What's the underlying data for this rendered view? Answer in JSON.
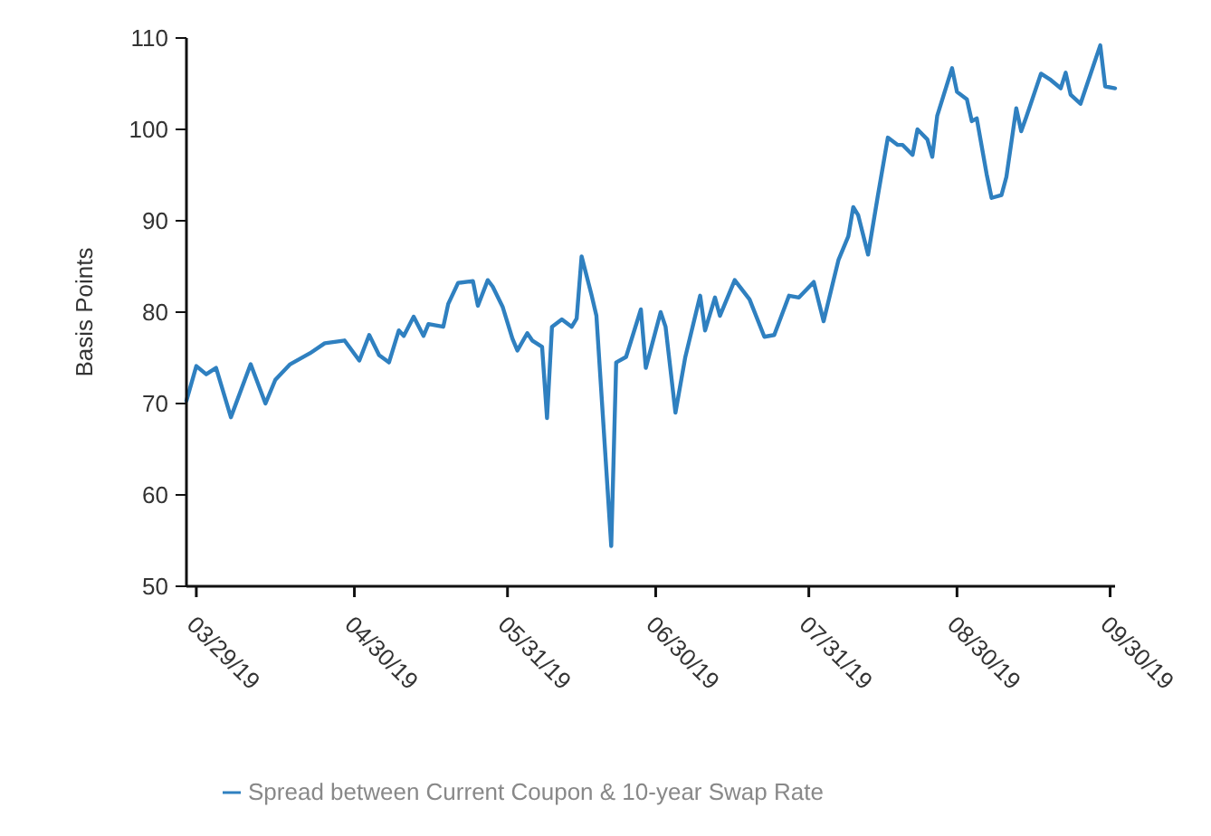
{
  "chart_data": {
    "type": "line",
    "ylabel": "Basis Points",
    "x": [
      "2019-03-27",
      "2019-03-29",
      "2019-03-31",
      "2019-04-02",
      "2019-04-05",
      "2019-04-09",
      "2019-04-12",
      "2019-04-14",
      "2019-04-17",
      "2019-04-21",
      "2019-04-24",
      "2019-04-28",
      "2019-05-01",
      "2019-05-03",
      "2019-05-05",
      "2019-05-07",
      "2019-05-09",
      "2019-05-10",
      "2019-05-12",
      "2019-05-14",
      "2019-05-15",
      "2019-05-18",
      "2019-05-19",
      "2019-05-21",
      "2019-05-24",
      "2019-05-25",
      "2019-05-27",
      "2019-05-28",
      "2019-05-30",
      "2019-06-01",
      "2019-06-02",
      "2019-06-04",
      "2019-06-05",
      "2019-06-07",
      "2019-06-08",
      "2019-06-09",
      "2019-06-11",
      "2019-06-13",
      "2019-06-14",
      "2019-06-15",
      "2019-06-17",
      "2019-06-18",
      "2019-06-21",
      "2019-06-22",
      "2019-06-24",
      "2019-06-27",
      "2019-06-28",
      "2019-07-01",
      "2019-07-02",
      "2019-07-04",
      "2019-07-06",
      "2019-07-09",
      "2019-07-10",
      "2019-07-12",
      "2019-07-13",
      "2019-07-16",
      "2019-07-19",
      "2019-07-22",
      "2019-07-24",
      "2019-07-27",
      "2019-07-29",
      "2019-08-01",
      "2019-08-03",
      "2019-08-05",
      "2019-08-06",
      "2019-08-08",
      "2019-08-09",
      "2019-08-10",
      "2019-08-12",
      "2019-08-14",
      "2019-08-16",
      "2019-08-18",
      "2019-08-19",
      "2019-08-21",
      "2019-08-22",
      "2019-08-24",
      "2019-08-25",
      "2019-08-26",
      "2019-08-29",
      "2019-08-30",
      "2019-09-01",
      "2019-09-02",
      "2019-09-03",
      "2019-09-05",
      "2019-09-06",
      "2019-09-08",
      "2019-09-09",
      "2019-09-11",
      "2019-09-12",
      "2019-09-13",
      "2019-09-16",
      "2019-09-18",
      "2019-09-20",
      "2019-09-21",
      "2019-09-22",
      "2019-09-24",
      "2019-09-28",
      "2019-09-29",
      "2019-10-01"
    ],
    "series": [
      {
        "name": "Spread between Current Coupon & 10-year Swap Rate",
        "color": "#2f80c0",
        "values": [
          70.3,
          74.1,
          73.2,
          73.9,
          68.5,
          74.3,
          70.0,
          72.6,
          74.3,
          75.5,
          76.6,
          76.9,
          74.7,
          77.5,
          75.3,
          74.5,
          78.0,
          77.4,
          79.5,
          77.4,
          78.7,
          78.4,
          80.9,
          83.2,
          83.4,
          80.7,
          83.5,
          82.8,
          80.6,
          77.1,
          75.8,
          77.7,
          76.9,
          76.2,
          68.4,
          78.4,
          79.2,
          78.4,
          79.3,
          86.1,
          81.9,
          79.6,
          54.4,
          74.5,
          75.1,
          80.3,
          73.9,
          80.0,
          78.4,
          69.0,
          75.1,
          81.8,
          78.0,
          81.6,
          79.6,
          83.5,
          81.4,
          77.3,
          77.5,
          81.8,
          81.6,
          83.3,
          79.0,
          83.5,
          85.7,
          88.3,
          91.5,
          90.6,
          86.3,
          92.8,
          99.1,
          98.3,
          98.3,
          97.2,
          100.0,
          98.9,
          97.0,
          101.5,
          106.7,
          104.1,
          103.3,
          100.9,
          101.2,
          95.1,
          92.5,
          92.8,
          94.8,
          102.3,
          99.8,
          101.3,
          106.1,
          105.4,
          104.5,
          106.2,
          103.8,
          102.8,
          109.2,
          104.7,
          104.5
        ]
      }
    ],
    "xlim": [
      "2019-03-27",
      "2019-10-01"
    ],
    "xticks": [
      {
        "value": "2019-03-29",
        "label": "03/29/19"
      },
      {
        "value": "2019-04-30",
        "label": "04/30/19"
      },
      {
        "value": "2019-05-31",
        "label": "05/31/19"
      },
      {
        "value": "2019-06-30",
        "label": "06/30/19"
      },
      {
        "value": "2019-07-31",
        "label": "07/31/19"
      },
      {
        "value": "2019-08-30",
        "label": "08/30/19"
      },
      {
        "value": "2019-09-30",
        "label": "09/30/19"
      }
    ],
    "ylim": [
      50,
      110
    ],
    "yticks": [
      50,
      60,
      70,
      80,
      90,
      100,
      110
    ],
    "grid": false,
    "legend": "bottom",
    "marker": "none",
    "line_style": "solid"
  }
}
